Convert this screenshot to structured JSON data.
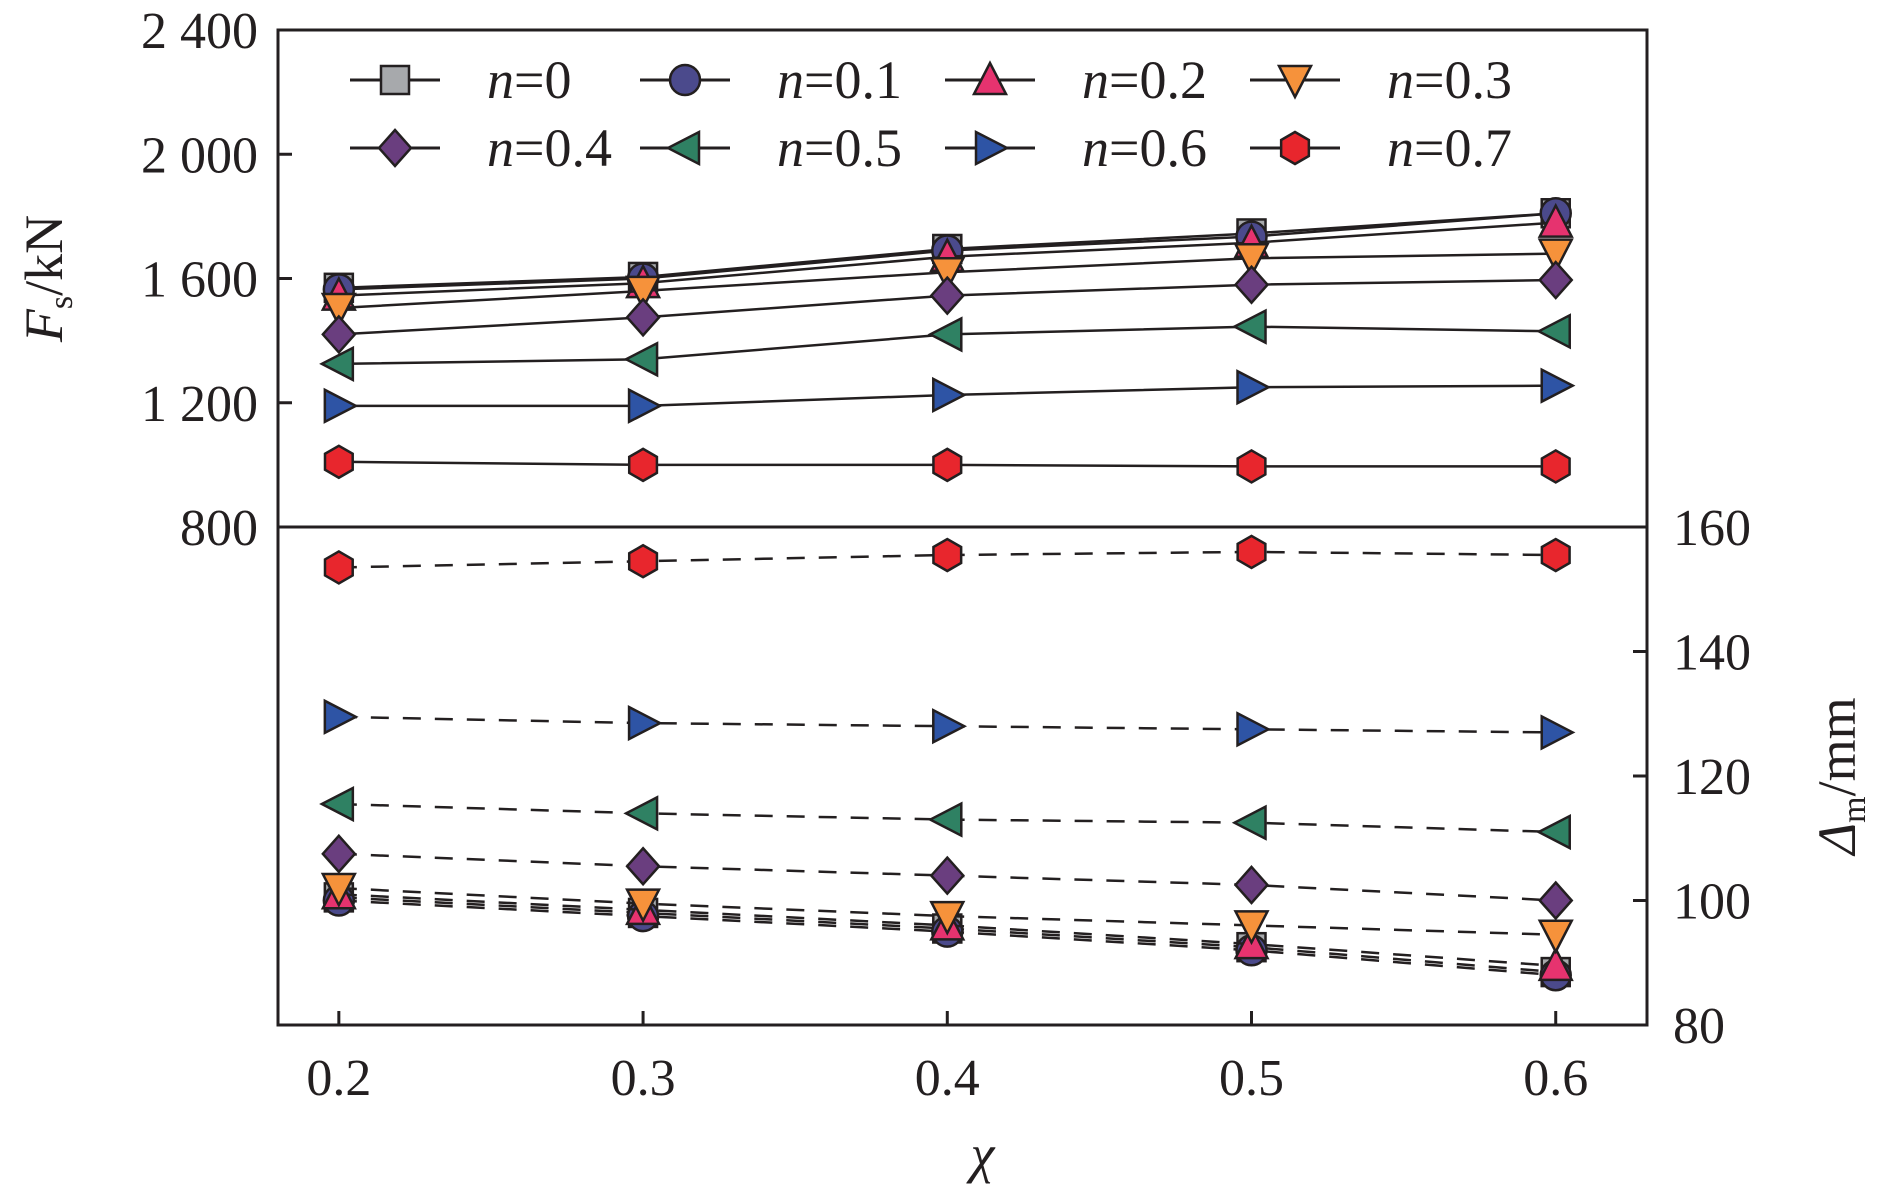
{
  "chart_data": {
    "type": "line",
    "x": [
      0.2,
      0.3,
      0.4,
      0.5,
      0.6
    ],
    "x_tick_labels": [
      "0.2",
      "0.3",
      "0.4",
      "0.5",
      "0.6"
    ],
    "xlabel": "χ",
    "xlim": [
      0.18,
      0.63
    ],
    "top_panel": {
      "ylabel_main": "F",
      "ylabel_sub": "s",
      "ylabel_unit": "/kN",
      "ylim": [
        800,
        2400
      ],
      "y_ticks": [
        800,
        1200,
        1600,
        2000,
        2400
      ],
      "y_tick_labels": [
        "800",
        "1 200",
        "1 600",
        "2 000",
        "2 400"
      ],
      "line_style": "solid"
    },
    "bottom_panel": {
      "ylabel_main": "Δ",
      "ylabel_sub": "m",
      "ylabel_unit": "/mm",
      "ylim": [
        80,
        160
      ],
      "y_ticks": [
        80,
        100,
        120,
        140,
        160
      ],
      "y_tick_labels": [
        "80",
        "100",
        "120",
        "140",
        "160"
      ],
      "axis_side": "right",
      "line_style": "dashed"
    },
    "legend": {
      "placement": "top",
      "columns": 4,
      "items": [
        {
          "prefix": "n",
          "text": "=0"
        },
        {
          "prefix": "n",
          "text": "=0.1"
        },
        {
          "prefix": "n",
          "text": "=0.2"
        },
        {
          "prefix": "n",
          "text": "=0.3"
        },
        {
          "prefix": "n",
          "text": "=0.4"
        },
        {
          "prefix": "n",
          "text": "=0.5"
        },
        {
          "prefix": "n",
          "text": "=0.6"
        },
        {
          "prefix": "n",
          "text": "=0.7"
        }
      ]
    },
    "series": [
      {
        "name": "n=0",
        "marker": "square",
        "color": "#a7a9ac",
        "Fs": [
          1570,
          1605,
          1695,
          1745,
          1810
        ],
        "delta_m": [
          100.5,
          98.0,
          95.5,
          92.5,
          88.5
        ]
      },
      {
        "name": "n=0.1",
        "marker": "circle",
        "color": "#4b4a8c",
        "Fs": [
          1565,
          1600,
          1690,
          1735,
          1810
        ],
        "delta_m": [
          100.0,
          97.5,
          95.0,
          92.0,
          88.0
        ]
      },
      {
        "name": "n=0.2",
        "marker": "triangle-up",
        "color": "#e6336f",
        "Fs": [
          1545,
          1585,
          1670,
          1715,
          1780
        ],
        "delta_m": [
          101.0,
          98.5,
          96.0,
          93.0,
          89.5
        ]
      },
      {
        "name": "n=0.3",
        "marker": "triangle-down",
        "color": "#f6923b",
        "Fs": [
          1505,
          1560,
          1620,
          1665,
          1680
        ],
        "delta_m": [
          102.0,
          99.5,
          97.5,
          96.0,
          94.5
        ]
      },
      {
        "name": "n=0.4",
        "marker": "diamond",
        "color": "#6a3e7f",
        "Fs": [
          1420,
          1475,
          1545,
          1580,
          1595
        ],
        "delta_m": [
          107.5,
          105.5,
          104.0,
          102.5,
          100.0
        ]
      },
      {
        "name": "n=0.5",
        "marker": "triangle-left",
        "color": "#2f8163",
        "Fs": [
          1325,
          1340,
          1420,
          1445,
          1430
        ],
        "delta_m": [
          115.5,
          114.0,
          113.0,
          112.5,
          111.0
        ]
      },
      {
        "name": "n=0.6",
        "marker": "triangle-right",
        "color": "#2e54a5",
        "Fs": [
          1190,
          1190,
          1225,
          1250,
          1255
        ],
        "delta_m": [
          129.5,
          128.5,
          128.0,
          127.5,
          127.0
        ]
      },
      {
        "name": "n=0.7",
        "marker": "hexagon",
        "color": "#e8262d",
        "Fs": [
          1010,
          1000,
          1000,
          995,
          995
        ],
        "delta_m": [
          153.5,
          154.5,
          155.5,
          156.0,
          155.5
        ]
      }
    ]
  }
}
